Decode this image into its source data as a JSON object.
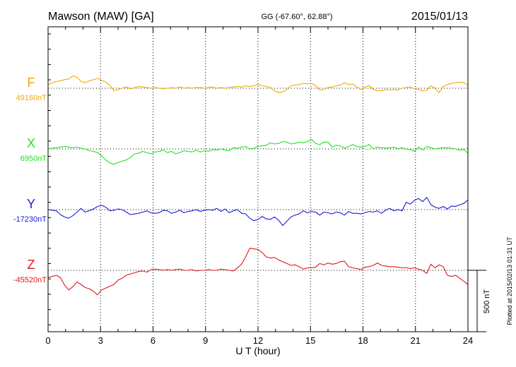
{
  "chart_data": {
    "type": "line",
    "title": "Mawson (MAW)  [GA]",
    "coords": "GG (-67.60°,  62.88°)",
    "date": "2015/01/13",
    "xlabel": "U T (hour)",
    "xlim": [
      0,
      24
    ],
    "xticks": [
      "0",
      "3",
      "6",
      "9",
      "12",
      "15",
      "18",
      "21",
      "24"
    ],
    "scale_label": "500 nT",
    "scale_nT": 500,
    "plotted_text": "Plotted at 2015/02/13 01:31  UT",
    "grid": true,
    "series": [
      {
        "name": "F",
        "baseline_label": "49160nT",
        "baseline_nT": 49160,
        "color": "#f5a800",
        "offset_nT": [
          30,
          45,
          55,
          60,
          70,
          75,
          100,
          90,
          55,
          45,
          60,
          70,
          80,
          65,
          50,
          25,
          -20,
          -10,
          0,
          10,
          -5,
          5,
          15,
          10,
          5,
          0,
          5,
          0,
          -5,
          0,
          5,
          0,
          10,
          0,
          5,
          0,
          5,
          5,
          0,
          5,
          10,
          0,
          5,
          0,
          5,
          10,
          15,
          10,
          20,
          15,
          20,
          30,
          20,
          15,
          5,
          -20,
          -35,
          -30,
          -10,
          20,
          25,
          30,
          40,
          35,
          40,
          20,
          -15,
          -10,
          5,
          10,
          20,
          25,
          45,
          30,
          35,
          10,
          -10,
          10,
          20,
          -10,
          -20,
          -20,
          -10,
          -15,
          -10,
          -15,
          0,
          5,
          10,
          -5,
          -10,
          -20,
          -15,
          20,
          0,
          -35,
          15,
          30,
          40,
          45,
          50,
          45,
          25
        ]
      },
      {
        "name": "X",
        "baseline_label": "6950nT",
        "baseline_nT": 6950,
        "color": "#22e022",
        "offset_nT": [
          0,
          5,
          10,
          15,
          20,
          15,
          10,
          15,
          5,
          0,
          -15,
          -20,
          -30,
          -55,
          -90,
          -115,
          -125,
          -110,
          -100,
          -90,
          -70,
          -40,
          -35,
          -20,
          -30,
          -40,
          -25,
          -20,
          -10,
          -30,
          -20,
          -40,
          -30,
          -15,
          -20,
          -25,
          -10,
          -25,
          -15,
          -20,
          -5,
          -10,
          0,
          -10,
          -15,
          10,
          5,
          15,
          20,
          0,
          5,
          20,
          25,
          30,
          50,
          40,
          45,
          60,
          55,
          40,
          45,
          55,
          50,
          60,
          80,
          45,
          35,
          55,
          55,
          15,
          30,
          25,
          5,
          20,
          35,
          20,
          15,
          20,
          35,
          0,
          15,
          10,
          5,
          10,
          15,
          0,
          10,
          0,
          -5,
          -20,
          15,
          -10,
          20,
          10,
          0,
          5,
          10,
          10,
          5,
          0,
          -10,
          -5,
          -35
        ]
      },
      {
        "name": "Y",
        "baseline_label": "-17230nT",
        "baseline_nT": -17230,
        "color": "#1a1ad8",
        "offset_nT": [
          0,
          -5,
          -10,
          -40,
          -60,
          -70,
          -50,
          -20,
          10,
          -20,
          -10,
          5,
          25,
          35,
          20,
          -10,
          -5,
          5,
          0,
          -20,
          -40,
          -35,
          -30,
          -20,
          -10,
          -25,
          -30,
          -25,
          -5,
          -10,
          -30,
          -20,
          -5,
          -25,
          -15,
          -10,
          0,
          -15,
          -5,
          0,
          -5,
          10,
          -15,
          5,
          -25,
          -10,
          0,
          -30,
          -35,
          -70,
          -90,
          -80,
          -55,
          -75,
          -80,
          -60,
          -85,
          -130,
          -95,
          -60,
          -45,
          -35,
          -10,
          -25,
          -15,
          -20,
          -45,
          -20,
          -25,
          -35,
          -20,
          -25,
          -45,
          -15,
          -30,
          -30,
          -35,
          -25,
          -15,
          -20,
          -10,
          -30,
          -5,
          10,
          -10,
          0,
          -10,
          60,
          45,
          75,
          90,
          65,
          100,
          40,
          20,
          10,
          25,
          5,
          30,
          25,
          40,
          50,
          80
        ]
      },
      {
        "name": "Z",
        "baseline_label": "-45520nT",
        "baseline_nT": -45520,
        "color": "#e01818",
        "offset_nT": [
          -60,
          -50,
          -40,
          -60,
          -120,
          -160,
          -135,
          -95,
          -115,
          -140,
          -150,
          -170,
          -200,
          -160,
          -145,
          -130,
          -115,
          -80,
          -65,
          -40,
          -30,
          -20,
          -10,
          -5,
          -15,
          5,
          10,
          5,
          0,
          5,
          0,
          5,
          10,
          0,
          0,
          5,
          -5,
          0,
          0,
          5,
          0,
          0,
          10,
          5,
          0,
          -5,
          20,
          50,
          110,
          180,
          175,
          170,
          145,
          110,
          100,
          105,
          85,
          70,
          55,
          40,
          45,
          30,
          10,
          20,
          20,
          25,
          55,
          45,
          60,
          50,
          55,
          70,
          75,
          30,
          20,
          15,
          5,
          25,
          30,
          40,
          60,
          40,
          35,
          30,
          30,
          25,
          20,
          20,
          15,
          20,
          10,
          0,
          -25,
          50,
          20,
          45,
          30,
          -40,
          -50,
          -40,
          -65,
          -90,
          -115
        ]
      }
    ]
  }
}
